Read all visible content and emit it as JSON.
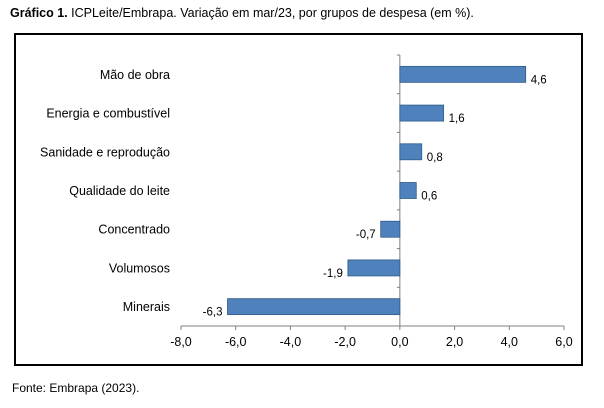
{
  "figure": {
    "title_bold": "Gráfico 1.",
    "title_text": " ICPLeite/Embrapa. Variação em mar/23, por grupos de despesa (em %).",
    "source": "Fonte: Embrapa (2023)."
  },
  "chart_data": {
    "type": "bar",
    "orientation": "horizontal",
    "categories": [
      "Mão de obra",
      "Energia e combustível",
      "Sanidade e reprodução",
      "Qualidade do leite",
      "Concentrado",
      "Volumosos",
      "Minerais"
    ],
    "values": [
      4.6,
      1.6,
      0.8,
      0.6,
      -0.7,
      -1.9,
      -6.3
    ],
    "data_labels": [
      "4,6",
      "1,6",
      "0,8",
      "0,6",
      "-0,7",
      "-1,9",
      "-6,3"
    ],
    "xlim": [
      -8.0,
      6.0
    ],
    "x_ticks": [
      -8,
      -6,
      -4,
      -2,
      0,
      2,
      4,
      6
    ],
    "x_tick_labels": [
      "-8,0",
      "-6,0",
      "-4,0",
      "-2,0",
      "0,0",
      "2,0",
      "4,0",
      "6,0"
    ],
    "grid": false,
    "legend": "none",
    "bar_color": "#4f81bd",
    "bar_edge_color": "#2e5c8a"
  }
}
